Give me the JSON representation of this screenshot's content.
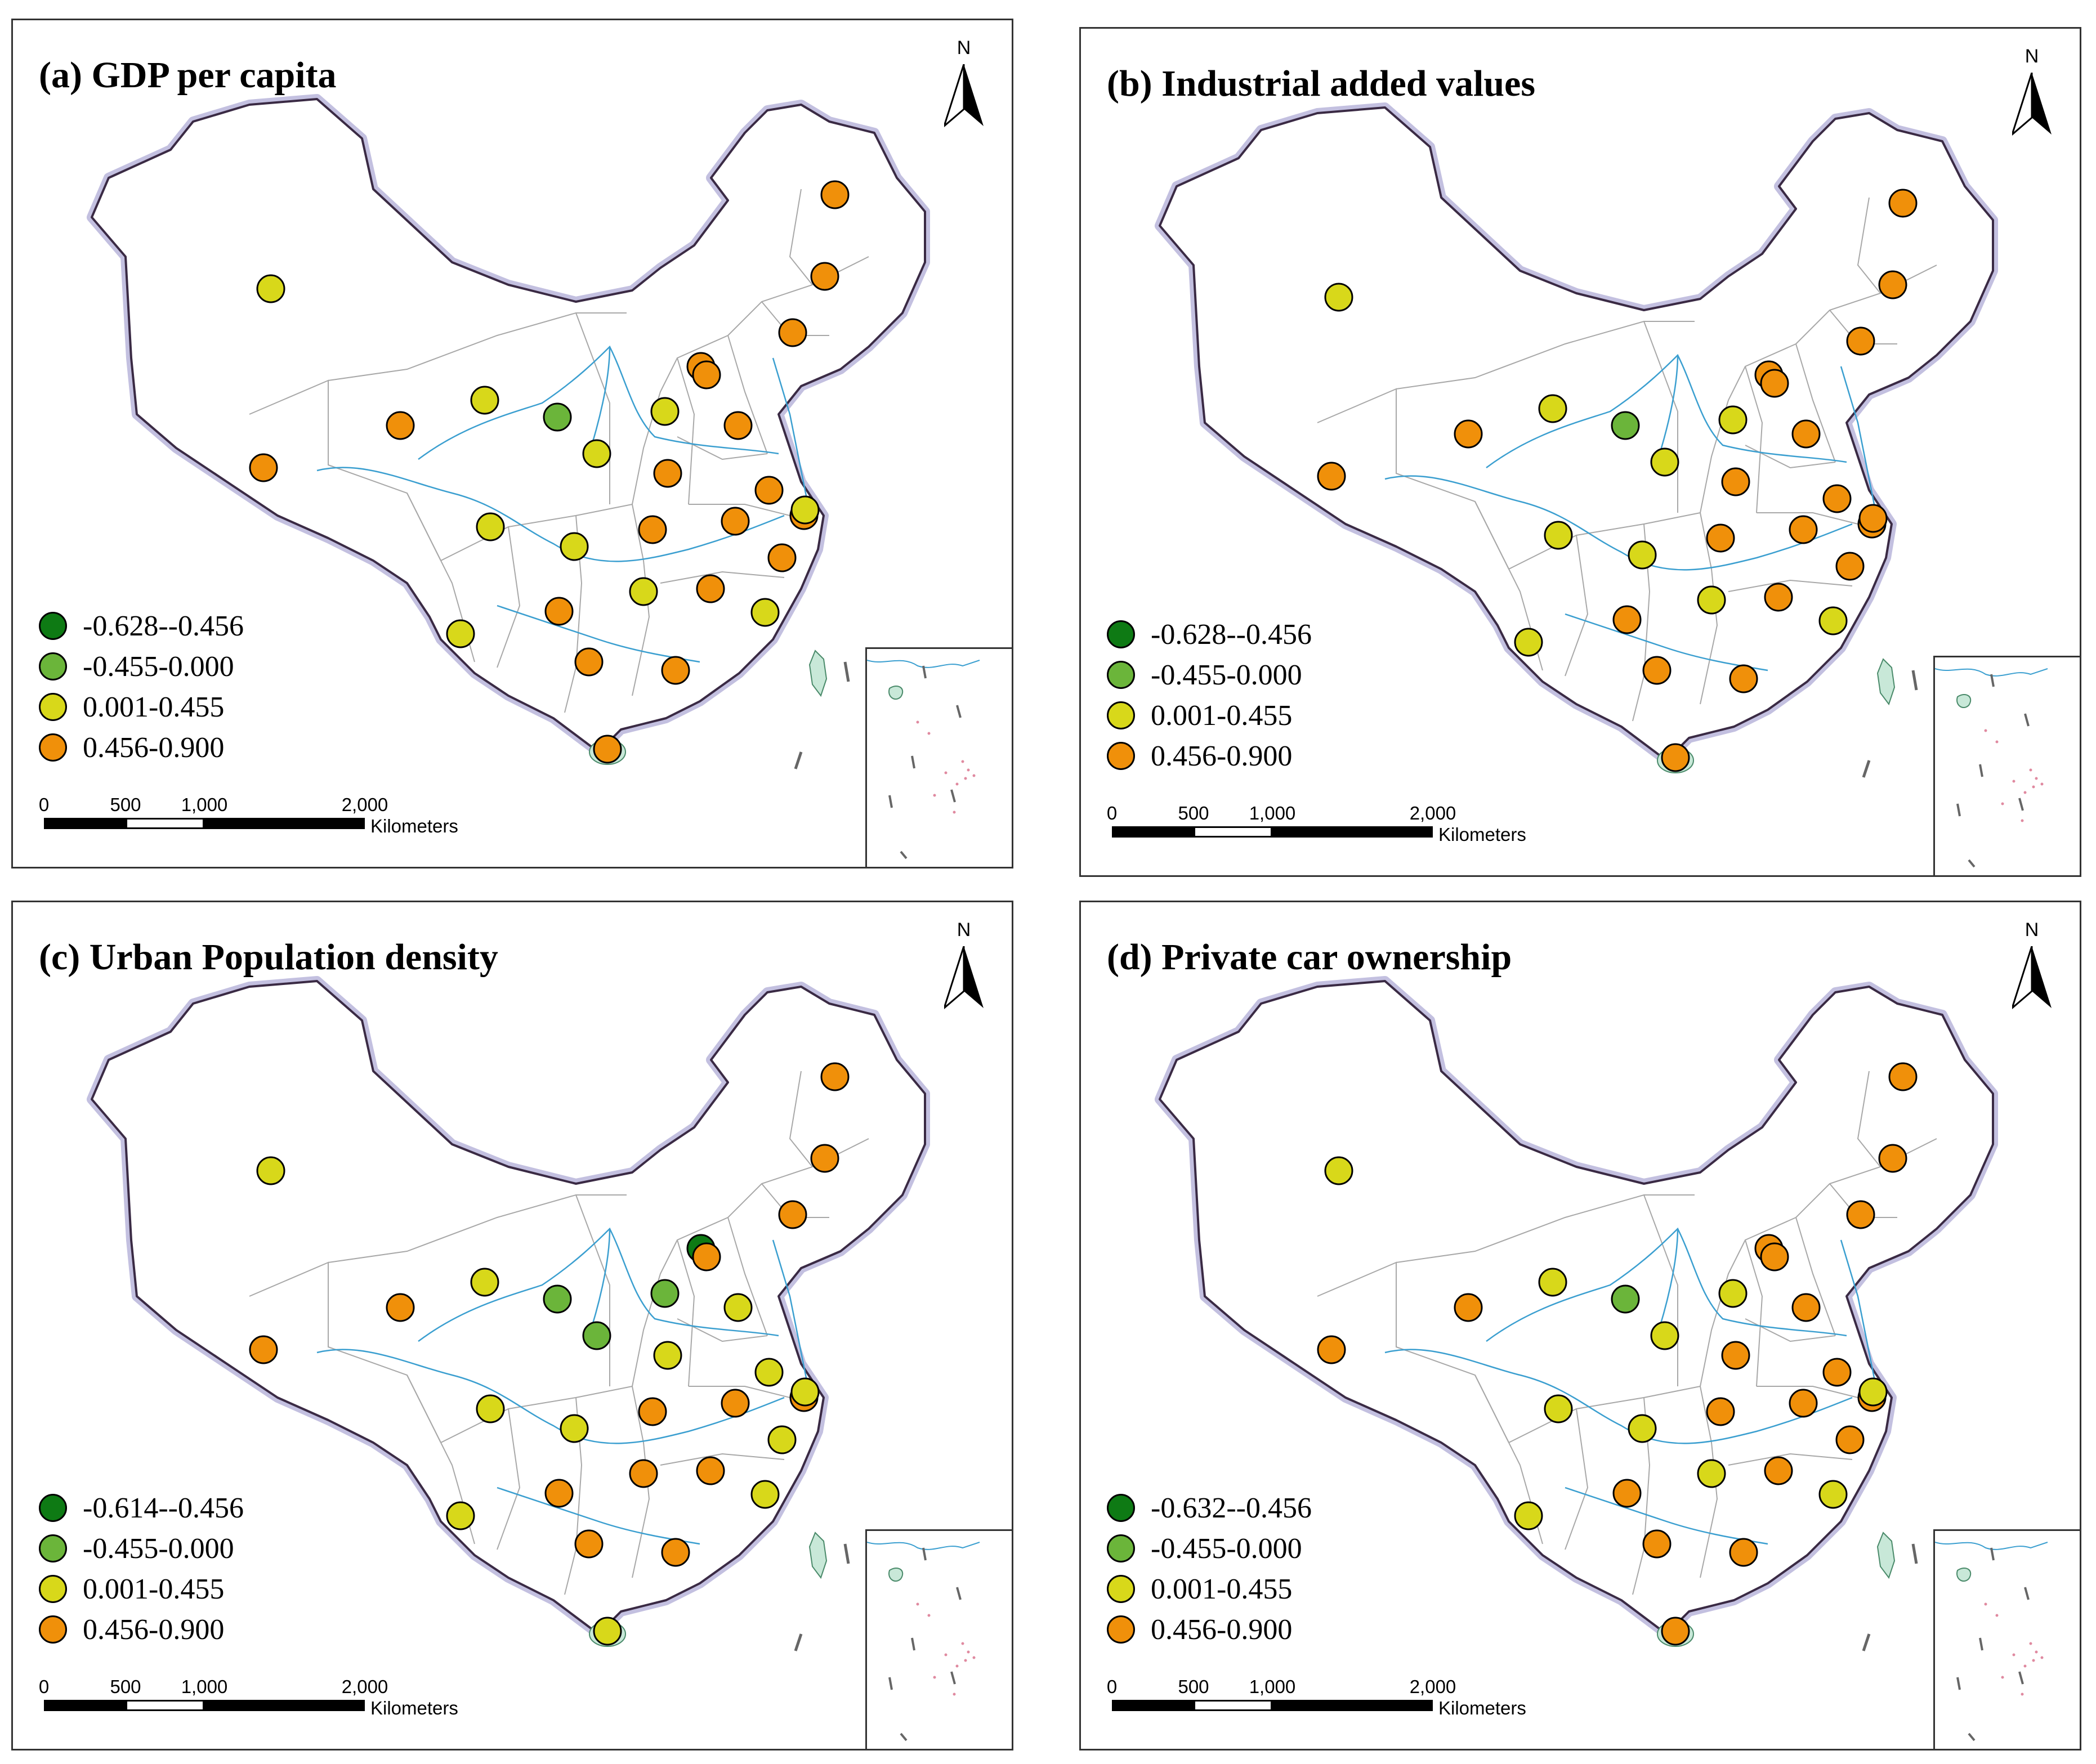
{
  "panels": [
    {
      "id": "a",
      "title": "(a) GDP per capita",
      "legend": [
        "-0.628--0.456",
        "-0.455-0.000",
        "0.001-0.455",
        "0.456-0.900"
      ],
      "points": [
        3,
        3,
        2,
        3,
        3,
        3,
        2,
        1,
        3,
        2,
        3,
        2,
        3,
        3,
        3,
        3,
        2,
        3,
        3,
        2,
        3,
        3,
        2,
        2,
        3,
        2,
        3,
        3,
        3,
        2
      ]
    },
    {
      "id": "b",
      "title": "(b) Industrial added values",
      "legend": [
        "-0.628--0.456",
        "-0.455-0.000",
        "0.001-0.455",
        "0.456-0.900"
      ],
      "points": [
        3,
        3,
        2,
        3,
        3,
        3,
        2,
        1,
        3,
        2,
        3,
        2,
        3,
        3,
        3,
        3,
        2,
        3,
        3,
        2,
        3,
        3,
        2,
        2,
        3,
        2,
        3,
        3,
        3,
        3
      ]
    },
    {
      "id": "c",
      "title": "(c) Urban Population density",
      "legend": [
        "-0.614--0.456",
        "-0.455-0.000",
        "0.001-0.455",
        "0.456-0.900"
      ],
      "points": [
        3,
        3,
        2,
        3,
        0,
        3,
        1,
        1,
        2,
        2,
        3,
        1,
        3,
        2,
        2,
        3,
        2,
        3,
        3,
        2,
        2,
        3,
        3,
        2,
        3,
        2,
        3,
        3,
        2,
        2
      ]
    },
    {
      "id": "d",
      "title": "(d) Private car ownership",
      "legend": [
        "-0.632--0.456",
        "-0.455-0.000",
        "0.001-0.455",
        "0.456-0.900"
      ],
      "points": [
        3,
        3,
        2,
        3,
        3,
        3,
        2,
        1,
        3,
        2,
        3,
        2,
        3,
        3,
        3,
        3,
        2,
        3,
        3,
        2,
        3,
        3,
        2,
        2,
        3,
        2,
        3,
        3,
        3,
        2
      ]
    }
  ],
  "class_colors": [
    "#0e7a14",
    "#6bb53a",
    "#d8d81a",
    "#f0900a"
  ],
  "north_label": "N",
  "scale": {
    "ticks": [
      "0",
      "500",
      "1,000",
      "2,000"
    ],
    "unit": "Kilometers"
  }
}
